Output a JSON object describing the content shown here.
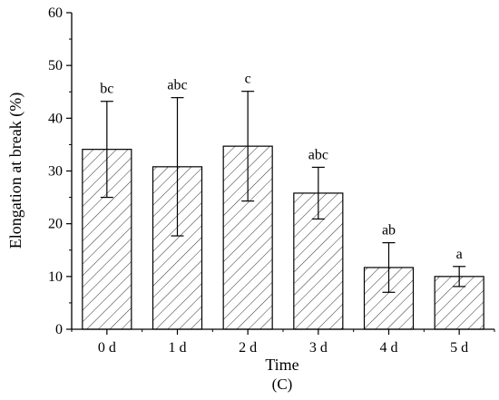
{
  "chart_data": {
    "type": "bar",
    "xlabel": "Time",
    "ylabel": "Elongation at break (%)",
    "caption": "(C)",
    "ylim": [
      0,
      60
    ],
    "yticks": [
      0,
      10,
      20,
      30,
      40,
      50,
      60
    ],
    "categories": [
      "0 d",
      "1 d",
      "2 d",
      "3 d",
      "4 d",
      "5 d"
    ],
    "values": [
      34.1,
      30.8,
      34.7,
      25.8,
      11.7,
      10.0
    ],
    "errors": [
      9.1,
      13.1,
      10.4,
      4.9,
      4.7,
      1.9
    ],
    "significance": [
      "bc",
      "abc",
      "c",
      "abc",
      "ab",
      "a"
    ],
    "bar_style": "diagonal hatch, black outline, white fill",
    "grid": false
  }
}
